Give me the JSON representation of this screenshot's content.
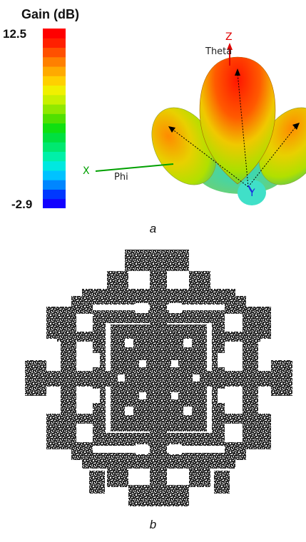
{
  "panel_a": {
    "colorbar": {
      "title": "Gain (dB)",
      "max_label": "12.5",
      "min_label": "-2.9",
      "colors": [
        "#1200ff",
        "#0038ff",
        "#0086ff",
        "#00c2ff",
        "#00e8e0",
        "#00f0a8",
        "#00e870",
        "#00e040",
        "#10e010",
        "#50e000",
        "#90e800",
        "#c8f000",
        "#f0f000",
        "#ffd000",
        "#ffaa00",
        "#ff8000",
        "#ff5000",
        "#ff2000",
        "#ff0000"
      ]
    },
    "axes": {
      "z_label": "Z",
      "theta_label": "Theta",
      "x_label": "X",
      "phi_label": "Phi",
      "y_label": "Y"
    },
    "caption": "a"
  },
  "panel_b": {
    "caption": "b"
  }
}
